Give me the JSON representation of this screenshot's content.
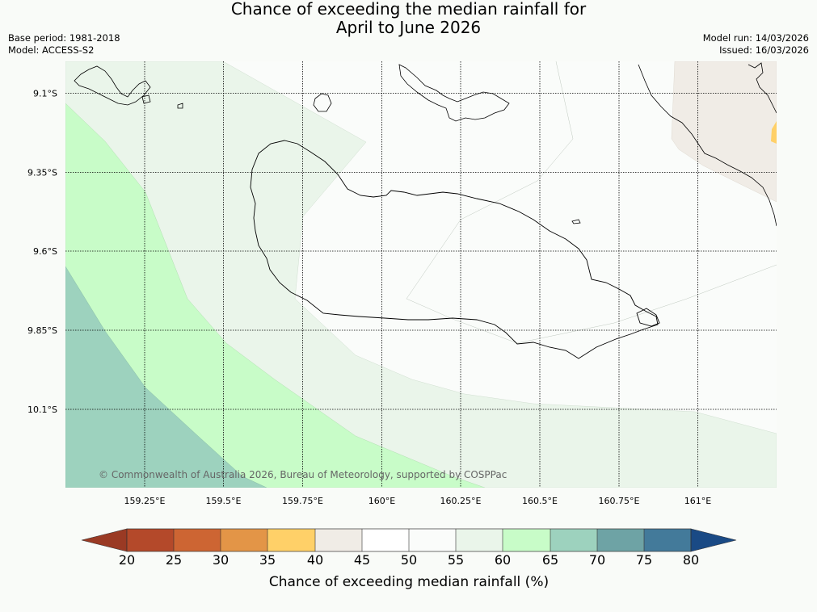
{
  "title": {
    "line1": "Chance of exceeding the median rainfall for",
    "line2": "April to June 2026"
  },
  "meta": {
    "base_period": "Base period: 1981-2018",
    "model": "Model: ACCESS-S2",
    "model_run": "Model run: 14/03/2026",
    "issued": "Issued: 16/03/2026"
  },
  "map": {
    "lat_labels": [
      "9.1°S",
      "9.35°S",
      "9.6°S",
      "9.85°S",
      "10.1°S"
    ],
    "lon_labels": [
      "159.25°E",
      "159.5°E",
      "159.75°E",
      "160°E",
      "160.25°E",
      "160.5°E",
      "160.75°E",
      "161°E"
    ],
    "copyright": "© Commonwealth of Australia 2026, Bureau of Meteorology, supported by COSPPac"
  },
  "colorbar": {
    "title": "Chance of exceeding median rainfall (%)",
    "ticks": [
      "20",
      "25",
      "30",
      "35",
      "40",
      "45",
      "50",
      "55",
      "60",
      "65",
      "70",
      "75",
      "80"
    ],
    "colors": {
      "below_20": "#9a3a24",
      "20_25": "#b4492a",
      "25_30": "#cd6533",
      "30_35": "#e39547",
      "35_40": "#ffd068",
      "40_45": "#f0ece6",
      "45_50": "#ffffff",
      "50_55": "#fafcfa",
      "55_60": "#eaf5ea",
      "60_65": "#c8fcc8",
      "65_70": "#9dd2be",
      "70_75": "#6ea3a5",
      "75_80": "#437a9a",
      "above_80": "#1a4a85"
    }
  }
}
